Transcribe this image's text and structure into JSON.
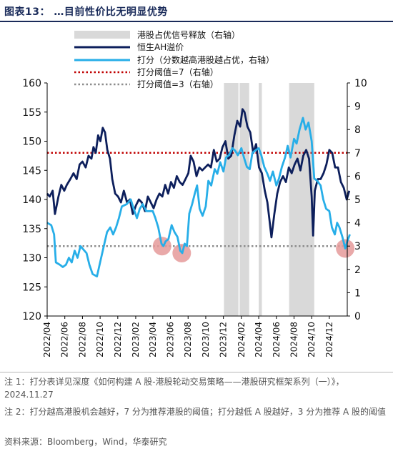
{
  "figure": {
    "title": "图表13：  …目前性价比无明显优势",
    "note1": "注 1：打分表详见深度《如何构建 A 股-港股轮动交易策略——港股研究框架系列（一）》，2024.11.27",
    "note2": "注 2：打分越高港股机会越好，7 分为推荐港股的阈值；打分越低 A 股越好，3 分为推荐 A 股的阈值",
    "source": "资料来源：Bloomberg，Wind，华泰研究"
  },
  "colors": {
    "premium_line": "#0d1f5c",
    "score_line": "#27aee8",
    "threshold7": "#c00000",
    "threshold3": "#8c8c8c",
    "shade": "#d9d9d9",
    "highlight": "#e59a9a"
  },
  "chart_data": {
    "type": "line",
    "x_start": "2022-04",
    "x_end": "2025-02",
    "x_ticks": [
      "2022/04",
      "2022/06",
      "2022/08",
      "2022/10",
      "2022/12",
      "2023/02",
      "2023/04",
      "2023/06",
      "2023/08",
      "2023/10",
      "2023/12",
      "2024/02",
      "2024/04",
      "2024/06",
      "2024/08",
      "2024/10",
      "2024/12"
    ],
    "y_left": {
      "min": 120,
      "max": 160,
      "ticks": [
        120,
        125,
        130,
        135,
        140,
        145,
        150,
        155,
        160
      ]
    },
    "y_right": {
      "min": 0,
      "max": 10,
      "ticks": [
        0,
        1,
        2,
        3,
        4,
        5,
        6,
        7,
        8,
        9,
        10
      ]
    },
    "legend": [
      {
        "label": "港股占优信号释放（右轴）",
        "kind": "shade"
      },
      {
        "label": "恒生AH溢价",
        "kind": "premium"
      },
      {
        "label": "打分（分数越高港股越占优，右轴）",
        "kind": "score"
      },
      {
        "label": "打分阈值=7（右轴）",
        "kind": "t7"
      },
      {
        "label": "打分阈值=3（右轴）",
        "kind": "t3"
      }
    ],
    "thresholds": {
      "high": 7,
      "low": 3
    },
    "signal_periods": [
      [
        "2023-12-03",
        "2024-01-22"
      ],
      [
        "2024-01-26",
        "2024-02-28"
      ],
      [
        "2024-04-01",
        "2024-04-12"
      ],
      [
        "2024-07-15",
        "2024-10-10"
      ]
    ],
    "highlight_points": [
      {
        "date": "2023-05-03",
        "score": 3.0
      },
      {
        "date": "2023-07-10",
        "score": 2.7
      },
      {
        "date": "2025-01-25",
        "score": 2.9
      }
    ],
    "series": [
      {
        "name": "恒生AH溢价",
        "axis": "left",
        "points": [
          [
            "2022-04-01",
            141.0
          ],
          [
            "2022-04-10",
            140.5
          ],
          [
            "2022-04-20",
            141.5
          ],
          [
            "2022-04-28",
            137.5
          ],
          [
            "2022-05-10",
            140.5
          ],
          [
            "2022-05-20",
            142.5
          ],
          [
            "2022-05-30",
            141.5
          ],
          [
            "2022-06-08",
            142.5
          ],
          [
            "2022-06-20",
            143.5
          ],
          [
            "2022-07-01",
            144.5
          ],
          [
            "2022-07-12",
            143.5
          ],
          [
            "2022-07-22",
            146.0
          ],
          [
            "2022-08-01",
            146.5
          ],
          [
            "2022-08-12",
            145.5
          ],
          [
            "2022-08-22",
            147.5
          ],
          [
            "2022-09-01",
            147.0
          ],
          [
            "2022-09-08",
            149.0
          ],
          [
            "2022-09-16",
            148.0
          ],
          [
            "2022-09-24",
            151.0
          ],
          [
            "2022-10-02",
            150.0
          ],
          [
            "2022-10-10",
            152.3
          ],
          [
            "2022-10-18",
            151.5
          ],
          [
            "2022-10-26",
            148.5
          ],
          [
            "2022-11-04",
            147.0
          ],
          [
            "2022-11-12",
            143.5
          ],
          [
            "2022-11-22",
            141.0
          ],
          [
            "2022-12-02",
            140.5
          ],
          [
            "2022-12-12",
            139.5
          ],
          [
            "2022-12-22",
            141.5
          ],
          [
            "2023-01-02",
            139.5
          ],
          [
            "2023-01-12",
            140.0
          ],
          [
            "2023-01-22",
            137.5
          ],
          [
            "2023-02-02",
            139.0
          ],
          [
            "2023-02-12",
            140.0
          ],
          [
            "2023-02-22",
            139.5
          ],
          [
            "2023-03-05",
            138.0
          ],
          [
            "2023-03-15",
            140.5
          ],
          [
            "2023-03-25",
            139.5
          ],
          [
            "2023-04-04",
            138.5
          ],
          [
            "2023-04-14",
            140.0
          ],
          [
            "2023-04-24",
            141.0
          ],
          [
            "2023-05-04",
            140.5
          ],
          [
            "2023-05-14",
            142.5
          ],
          [
            "2023-05-24",
            141.0
          ],
          [
            "2023-06-03",
            143.0
          ],
          [
            "2023-06-13",
            142.0
          ],
          [
            "2023-06-23",
            144.0
          ],
          [
            "2023-07-03",
            143.0
          ],
          [
            "2023-07-13",
            142.5
          ],
          [
            "2023-07-23",
            143.5
          ],
          [
            "2023-08-02",
            144.5
          ],
          [
            "2023-08-10",
            147.5
          ],
          [
            "2023-08-20",
            146.5
          ],
          [
            "2023-08-30",
            144.0
          ],
          [
            "2023-09-09",
            145.5
          ],
          [
            "2023-09-19",
            145.0
          ],
          [
            "2023-09-29",
            145.5
          ],
          [
            "2023-10-09",
            146.0
          ],
          [
            "2023-10-19",
            145.5
          ],
          [
            "2023-10-29",
            148.5
          ],
          [
            "2023-11-08",
            146.5
          ],
          [
            "2023-11-18",
            147.0
          ],
          [
            "2023-11-28",
            149.0
          ],
          [
            "2023-12-08",
            150.0
          ],
          [
            "2023-12-18",
            147.0
          ],
          [
            "2023-12-28",
            147.5
          ],
          [
            "2024-01-08",
            151.0
          ],
          [
            "2024-01-18",
            153.5
          ],
          [
            "2024-01-28",
            152.5
          ],
          [
            "2024-02-05",
            155.5
          ],
          [
            "2024-02-12",
            155.0
          ],
          [
            "2024-02-22",
            152.5
          ],
          [
            "2024-03-03",
            151.5
          ],
          [
            "2024-03-13",
            148.0
          ],
          [
            "2024-03-23",
            149.5
          ],
          [
            "2024-04-02",
            145.5
          ],
          [
            "2024-04-12",
            144.5
          ],
          [
            "2024-04-22",
            141.5
          ],
          [
            "2024-05-01",
            139.5
          ],
          [
            "2024-05-08",
            136.5
          ],
          [
            "2024-05-15",
            133.5
          ],
          [
            "2024-05-25",
            137.5
          ],
          [
            "2024-06-04",
            141.0
          ],
          [
            "2024-06-14",
            143.0
          ],
          [
            "2024-06-24",
            144.0
          ],
          [
            "2024-07-04",
            143.0
          ],
          [
            "2024-07-14",
            145.5
          ],
          [
            "2024-07-24",
            144.5
          ],
          [
            "2024-08-03",
            146.0
          ],
          [
            "2024-08-13",
            147.0
          ],
          [
            "2024-08-23",
            145.0
          ],
          [
            "2024-09-02",
            147.5
          ],
          [
            "2024-09-12",
            148.5
          ],
          [
            "2024-09-22",
            147.0
          ],
          [
            "2024-10-01",
            140.5
          ],
          [
            "2024-10-06",
            133.8
          ],
          [
            "2024-10-12",
            141.5
          ],
          [
            "2024-10-22",
            143.5
          ],
          [
            "2024-11-01",
            143.5
          ],
          [
            "2024-11-11",
            144.5
          ],
          [
            "2024-11-21",
            146.0
          ],
          [
            "2024-12-01",
            148.5
          ],
          [
            "2024-12-11",
            148.0
          ],
          [
            "2024-12-21",
            145.5
          ],
          [
            "2024-12-31",
            145.5
          ],
          [
            "2025-01-10",
            143.0
          ],
          [
            "2025-01-20",
            142.0
          ],
          [
            "2025-01-30",
            140.0
          ],
          [
            "2025-02-08",
            141.5
          ]
        ]
      },
      {
        "name": "打分（分数越高港股越占优，右轴）",
        "axis": "right",
        "points": [
          [
            "2022-04-01",
            4.0
          ],
          [
            "2022-04-15",
            3.9
          ],
          [
            "2022-04-25",
            3.5
          ],
          [
            "2022-05-01",
            2.3
          ],
          [
            "2022-05-15",
            2.2
          ],
          [
            "2022-05-25",
            2.1
          ],
          [
            "2022-06-05",
            2.2
          ],
          [
            "2022-06-15",
            2.5
          ],
          [
            "2022-06-25",
            2.3
          ],
          [
            "2022-07-05",
            2.8
          ],
          [
            "2022-07-15",
            2.5
          ],
          [
            "2022-07-25",
            3.0
          ],
          [
            "2022-08-01",
            2.9
          ],
          [
            "2022-08-15",
            2.7
          ],
          [
            "2022-08-25",
            2.2
          ],
          [
            "2022-09-05",
            1.8
          ],
          [
            "2022-09-20",
            1.7
          ],
          [
            "2022-10-01",
            2.3
          ],
          [
            "2022-10-10",
            2.8
          ],
          [
            "2022-10-25",
            3.6
          ],
          [
            "2022-11-05",
            3.8
          ],
          [
            "2022-11-15",
            3.5
          ],
          [
            "2022-11-25",
            3.8
          ],
          [
            "2022-12-05",
            4.2
          ],
          [
            "2022-12-15",
            4.7
          ],
          [
            "2023-01-01",
            4.8
          ],
          [
            "2023-01-15",
            5.0
          ],
          [
            "2023-01-25",
            4.6
          ],
          [
            "2023-02-05",
            4.2
          ],
          [
            "2023-02-15",
            4.6
          ],
          [
            "2023-02-25",
            4.8
          ],
          [
            "2023-03-10",
            4.5
          ],
          [
            "2023-03-20",
            4.5
          ],
          [
            "2023-04-01",
            4.5
          ],
          [
            "2023-04-10",
            4.2
          ],
          [
            "2023-04-20",
            3.8
          ],
          [
            "2023-05-01",
            3.1
          ],
          [
            "2023-05-08",
            3.0
          ],
          [
            "2023-05-15",
            3.2
          ],
          [
            "2023-05-25",
            3.3
          ],
          [
            "2023-06-05",
            3.9
          ],
          [
            "2023-06-15",
            3.6
          ],
          [
            "2023-06-25",
            3.4
          ],
          [
            "2023-07-05",
            2.8
          ],
          [
            "2023-07-12",
            2.7
          ],
          [
            "2023-07-20",
            3.1
          ],
          [
            "2023-07-28",
            3.0
          ],
          [
            "2023-08-05",
            4.4
          ],
          [
            "2023-08-15",
            4.8
          ],
          [
            "2023-08-25",
            5.3
          ],
          [
            "2023-09-01",
            5.6
          ],
          [
            "2023-09-10",
            4.6
          ],
          [
            "2023-09-20",
            4.3
          ],
          [
            "2023-10-01",
            4.7
          ],
          [
            "2023-10-10",
            5.8
          ],
          [
            "2023-10-20",
            5.6
          ],
          [
            "2023-11-01",
            6.3
          ],
          [
            "2023-11-10",
            6.1
          ],
          [
            "2023-11-20",
            6.6
          ],
          [
            "2023-12-01",
            6.2
          ],
          [
            "2023-12-10",
            6.8
          ],
          [
            "2023-12-20",
            6.9
          ],
          [
            "2024-01-01",
            7.2
          ],
          [
            "2024-01-10",
            7.1
          ],
          [
            "2024-01-20",
            6.9
          ],
          [
            "2024-02-01",
            7.2
          ],
          [
            "2024-02-10",
            6.8
          ],
          [
            "2024-02-20",
            6.4
          ],
          [
            "2024-03-01",
            6.3
          ],
          [
            "2024-03-10",
            7.0
          ],
          [
            "2024-03-20",
            7.1
          ],
          [
            "2024-04-01",
            7.2
          ],
          [
            "2024-04-10",
            6.9
          ],
          [
            "2024-04-20",
            6.4
          ],
          [
            "2024-05-01",
            6.1
          ],
          [
            "2024-05-10",
            5.8
          ],
          [
            "2024-05-20",
            6.2
          ],
          [
            "2024-06-01",
            5.6
          ],
          [
            "2024-06-10",
            5.9
          ],
          [
            "2024-06-20",
            6.4
          ],
          [
            "2024-07-01",
            6.8
          ],
          [
            "2024-07-10",
            7.3
          ],
          [
            "2024-07-20",
            6.8
          ],
          [
            "2024-08-01",
            7.6
          ],
          [
            "2024-08-10",
            7.4
          ],
          [
            "2024-08-20",
            8.0
          ],
          [
            "2024-09-01",
            8.5
          ],
          [
            "2024-09-10",
            8.0
          ],
          [
            "2024-09-20",
            8.3
          ],
          [
            "2024-10-01",
            7.5
          ],
          [
            "2024-10-10",
            5.9
          ],
          [
            "2024-10-20",
            5.8
          ],
          [
            "2024-11-01",
            5.6
          ],
          [
            "2024-11-10",
            5.0
          ],
          [
            "2024-11-20",
            4.6
          ],
          [
            "2024-12-01",
            4.5
          ],
          [
            "2024-12-10",
            3.8
          ],
          [
            "2024-12-20",
            3.5
          ],
          [
            "2024-12-28",
            4.0
          ],
          [
            "2025-01-05",
            3.8
          ],
          [
            "2025-01-15",
            3.4
          ],
          [
            "2025-01-25",
            2.9
          ],
          [
            "2025-02-01",
            3.2
          ],
          [
            "2025-02-10",
            3.5
          ]
        ]
      }
    ]
  }
}
